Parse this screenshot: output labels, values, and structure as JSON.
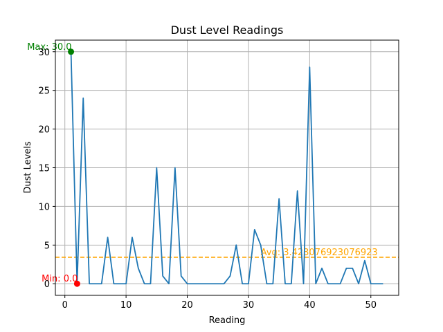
{
  "chart_data": {
    "type": "line",
    "title": "Dust Level Readings",
    "xlabel": "Reading",
    "ylabel": "Dust Levels",
    "xlim": [
      -1.55,
      54.55
    ],
    "ylim": [
      -1.5,
      31.5
    ],
    "grid": true,
    "x_ticks": [
      0,
      10,
      20,
      30,
      40,
      50
    ],
    "y_ticks": [
      0,
      5,
      10,
      15,
      20,
      25,
      30
    ],
    "series": [
      {
        "name": "Dust Levels",
        "color": "#1f77b4",
        "x": [
          1,
          2,
          3,
          4,
          5,
          6,
          7,
          8,
          9,
          10,
          11,
          12,
          13,
          14,
          15,
          16,
          17,
          18,
          19,
          20,
          21,
          22,
          23,
          24,
          25,
          26,
          27,
          28,
          29,
          30,
          31,
          32,
          33,
          34,
          35,
          36,
          37,
          38,
          39,
          40,
          41,
          42,
          43,
          44,
          45,
          46,
          47,
          48,
          49,
          50,
          51,
          52
        ],
        "values": [
          30,
          0,
          24,
          0,
          0,
          0,
          6,
          0,
          0,
          0,
          6,
          2,
          0,
          0,
          15,
          1,
          0,
          15,
          1,
          0,
          0,
          0,
          0,
          0,
          0,
          0,
          1,
          5,
          0,
          0,
          7,
          5,
          0,
          0,
          11,
          0,
          0,
          12,
          0,
          28,
          0,
          2,
          0,
          0,
          0,
          2,
          2,
          0,
          3,
          0,
          0,
          0
        ]
      }
    ],
    "average": {
      "value": 3.423076923076923,
      "label": "Avg: 3.423076923076923",
      "color": "#ffa500"
    },
    "max_point": {
      "x": 1,
      "y": 30,
      "label": "Max: 30.0",
      "color": "#008000"
    },
    "min_point": {
      "x": 2,
      "y": 0,
      "label": "Min: 0.0",
      "color": "#ff0000"
    }
  }
}
